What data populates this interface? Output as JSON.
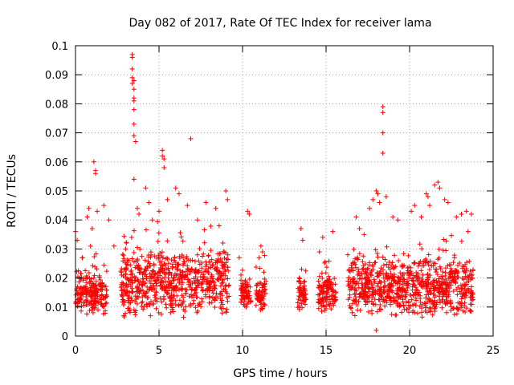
{
  "chart_data": {
    "type": "scatter",
    "title": "Day 082 of 2017, Rate Of TEC Index for receiver lama",
    "xlabel": "GPS time / hours",
    "ylabel": "ROTI / TECUs",
    "xlim": [
      0,
      25
    ],
    "ylim": [
      0,
      0.1
    ],
    "xticks": [
      0,
      5,
      10,
      15,
      20,
      25
    ],
    "xtick_labels": [
      "0",
      "5",
      "10",
      "15",
      "20",
      "25"
    ],
    "yticks": [
      0,
      0.01,
      0.02,
      0.03,
      0.04,
      0.05,
      0.06,
      0.07,
      0.08,
      0.09,
      0.1
    ],
    "ytick_labels": [
      "0",
      "0.01",
      "0.02",
      "0.03",
      "0.04",
      "0.05",
      "0.06",
      "0.07",
      "0.08",
      "0.09",
      "0.1"
    ],
    "grid": true,
    "marker": "+",
    "color": "#ff0000",
    "coverage_segments": [
      {
        "start": 0.0,
        "end": 1.9,
        "typical_low": 0.007,
        "typical_high": 0.022
      },
      {
        "start": 2.7,
        "end": 9.2,
        "typical_low": 0.006,
        "typical_high": 0.03
      },
      {
        "start": 9.9,
        "end": 10.5,
        "typical_low": 0.008,
        "typical_high": 0.02
      },
      {
        "start": 10.8,
        "end": 11.4,
        "typical_low": 0.008,
        "typical_high": 0.02
      },
      {
        "start": 13.3,
        "end": 13.8,
        "typical_low": 0.008,
        "typical_high": 0.02
      },
      {
        "start": 14.5,
        "end": 15.6,
        "typical_low": 0.008,
        "typical_high": 0.022
      },
      {
        "start": 16.3,
        "end": 23.8,
        "typical_low": 0.006,
        "typical_high": 0.028
      }
    ],
    "series": [
      {
        "name": "ROTI",
        "notable_points": [
          {
            "x": 0.0,
            "y": 0.036
          },
          {
            "x": 0.1,
            "y": 0.033
          },
          {
            "x": 0.4,
            "y": 0.027
          },
          {
            "x": 0.7,
            "y": 0.041
          },
          {
            "x": 0.8,
            "y": 0.044
          },
          {
            "x": 1.0,
            "y": 0.037
          },
          {
            "x": 1.1,
            "y": 0.06
          },
          {
            "x": 1.2,
            "y": 0.057
          },
          {
            "x": 1.2,
            "y": 0.056
          },
          {
            "x": 1.3,
            "y": 0.043
          },
          {
            "x": 1.7,
            "y": 0.045
          },
          {
            "x": 2.0,
            "y": 0.04
          },
          {
            "x": 2.3,
            "y": 0.031
          },
          {
            "x": 3.0,
            "y": 0.03
          },
          {
            "x": 3.2,
            "y": 0.026
          },
          {
            "x": 3.4,
            "y": 0.097
          },
          {
            "x": 3.4,
            "y": 0.096
          },
          {
            "x": 3.4,
            "y": 0.092
          },
          {
            "x": 3.4,
            "y": 0.089
          },
          {
            "x": 3.5,
            "y": 0.088
          },
          {
            "x": 3.4,
            "y": 0.087
          },
          {
            "x": 3.5,
            "y": 0.085
          },
          {
            "x": 3.5,
            "y": 0.082
          },
          {
            "x": 3.5,
            "y": 0.081
          },
          {
            "x": 3.5,
            "y": 0.078
          },
          {
            "x": 3.5,
            "y": 0.073
          },
          {
            "x": 3.5,
            "y": 0.069
          },
          {
            "x": 3.6,
            "y": 0.067
          },
          {
            "x": 3.5,
            "y": 0.054
          },
          {
            "x": 3.7,
            "y": 0.044
          },
          {
            "x": 3.8,
            "y": 0.042
          },
          {
            "x": 4.2,
            "y": 0.051
          },
          {
            "x": 4.4,
            "y": 0.046
          },
          {
            "x": 4.6,
            "y": 0.04
          },
          {
            "x": 5.0,
            "y": 0.043
          },
          {
            "x": 5.2,
            "y": 0.064
          },
          {
            "x": 5.2,
            "y": 0.062
          },
          {
            "x": 5.3,
            "y": 0.061
          },
          {
            "x": 5.3,
            "y": 0.058
          },
          {
            "x": 5.5,
            "y": 0.047
          },
          {
            "x": 6.0,
            "y": 0.051
          },
          {
            "x": 6.2,
            "y": 0.049
          },
          {
            "x": 6.7,
            "y": 0.045
          },
          {
            "x": 6.9,
            "y": 0.068
          },
          {
            "x": 7.3,
            "y": 0.04
          },
          {
            "x": 7.8,
            "y": 0.046
          },
          {
            "x": 8.4,
            "y": 0.044
          },
          {
            "x": 8.6,
            "y": 0.038
          },
          {
            "x": 9.0,
            "y": 0.05
          },
          {
            "x": 9.1,
            "y": 0.047
          },
          {
            "x": 9.8,
            "y": 0.027
          },
          {
            "x": 10.3,
            "y": 0.043
          },
          {
            "x": 10.4,
            "y": 0.042
          },
          {
            "x": 11.1,
            "y": 0.031
          },
          {
            "x": 11.2,
            "y": 0.029
          },
          {
            "x": 13.5,
            "y": 0.037
          },
          {
            "x": 13.6,
            "y": 0.033
          },
          {
            "x": 14.6,
            "y": 0.029
          },
          {
            "x": 14.8,
            "y": 0.034
          },
          {
            "x": 15.4,
            "y": 0.036
          },
          {
            "x": 16.3,
            "y": 0.028
          },
          {
            "x": 16.8,
            "y": 0.041
          },
          {
            "x": 17.0,
            "y": 0.037
          },
          {
            "x": 17.6,
            "y": 0.044
          },
          {
            "x": 17.8,
            "y": 0.047
          },
          {
            "x": 18.0,
            "y": 0.05
          },
          {
            "x": 18.1,
            "y": 0.049
          },
          {
            "x": 18.2,
            "y": 0.046
          },
          {
            "x": 18.4,
            "y": 0.079
          },
          {
            "x": 18.4,
            "y": 0.077
          },
          {
            "x": 18.4,
            "y": 0.07
          },
          {
            "x": 18.4,
            "y": 0.063
          },
          {
            "x": 18.6,
            "y": 0.048
          },
          {
            "x": 19.0,
            "y": 0.041
          },
          {
            "x": 19.3,
            "y": 0.04
          },
          {
            "x": 20.1,
            "y": 0.043
          },
          {
            "x": 20.3,
            "y": 0.045
          },
          {
            "x": 20.7,
            "y": 0.041
          },
          {
            "x": 21.0,
            "y": 0.049
          },
          {
            "x": 21.1,
            "y": 0.048
          },
          {
            "x": 21.2,
            "y": 0.045
          },
          {
            "x": 21.5,
            "y": 0.052
          },
          {
            "x": 21.7,
            "y": 0.053
          },
          {
            "x": 21.8,
            "y": 0.051
          },
          {
            "x": 22.1,
            "y": 0.047
          },
          {
            "x": 22.3,
            "y": 0.046
          },
          {
            "x": 22.8,
            "y": 0.041
          },
          {
            "x": 23.1,
            "y": 0.042
          },
          {
            "x": 23.4,
            "y": 0.043
          },
          {
            "x": 23.7,
            "y": 0.042
          },
          {
            "x": 23.5,
            "y": 0.036
          },
          {
            "x": 18.0,
            "y": 0.002
          }
        ]
      }
    ]
  }
}
